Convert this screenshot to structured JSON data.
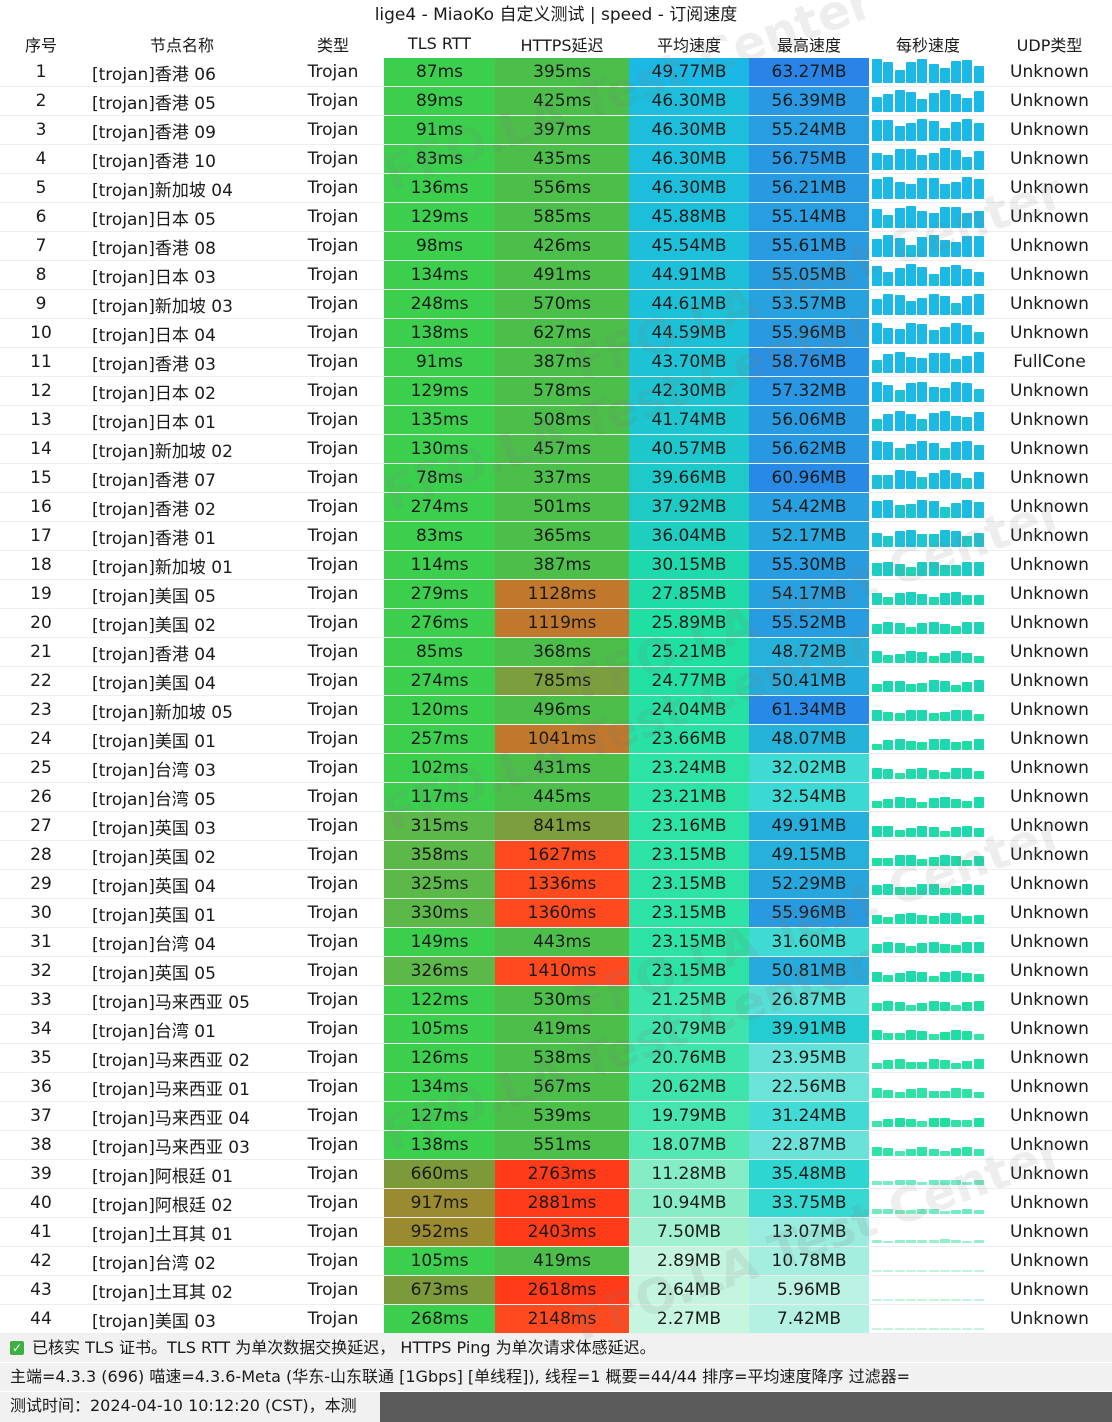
{
  "title": "lige4 - MiaoKo 自定义测试 | speed - 订阅速度",
  "columns": [
    "序号",
    "节点名称",
    "类型",
    "TLS RTT",
    "HTTPS延迟",
    "平均速度",
    "最高速度",
    "每秒速度",
    "UDP类型"
  ],
  "rows": [
    {
      "idx": "1",
      "name": "[trojan]香港 06",
      "type": "Trojan",
      "tls": "87ms",
      "https": "395ms",
      "avg": "49.77MB",
      "max": "63.27MB",
      "udp": "Unknown"
    },
    {
      "idx": "2",
      "name": "[trojan]香港 05",
      "type": "Trojan",
      "tls": "89ms",
      "https": "425ms",
      "avg": "46.30MB",
      "max": "56.39MB",
      "udp": "Unknown"
    },
    {
      "idx": "3",
      "name": "[trojan]香港 09",
      "type": "Trojan",
      "tls": "91ms",
      "https": "397ms",
      "avg": "46.30MB",
      "max": "55.24MB",
      "udp": "Unknown"
    },
    {
      "idx": "4",
      "name": "[trojan]香港 10",
      "type": "Trojan",
      "tls": "83ms",
      "https": "435ms",
      "avg": "46.30MB",
      "max": "56.75MB",
      "udp": "Unknown"
    },
    {
      "idx": "5",
      "name": "[trojan]新加坡 04",
      "type": "Trojan",
      "tls": "136ms",
      "https": "556ms",
      "avg": "46.30MB",
      "max": "56.21MB",
      "udp": "Unknown"
    },
    {
      "idx": "6",
      "name": "[trojan]日本 05",
      "type": "Trojan",
      "tls": "129ms",
      "https": "585ms",
      "avg": "45.88MB",
      "max": "55.14MB",
      "udp": "Unknown"
    },
    {
      "idx": "7",
      "name": "[trojan]香港 08",
      "type": "Trojan",
      "tls": "98ms",
      "https": "426ms",
      "avg": "45.54MB",
      "max": "55.61MB",
      "udp": "Unknown"
    },
    {
      "idx": "8",
      "name": "[trojan]日本 03",
      "type": "Trojan",
      "tls": "134ms",
      "https": "491ms",
      "avg": "44.91MB",
      "max": "55.05MB",
      "udp": "Unknown"
    },
    {
      "idx": "9",
      "name": "[trojan]新加坡 03",
      "type": "Trojan",
      "tls": "248ms",
      "https": "570ms",
      "avg": "44.61MB",
      "max": "53.57MB",
      "udp": "Unknown"
    },
    {
      "idx": "10",
      "name": "[trojan]日本 04",
      "type": "Trojan",
      "tls": "138ms",
      "https": "627ms",
      "avg": "44.59MB",
      "max": "55.96MB",
      "udp": "Unknown"
    },
    {
      "idx": "11",
      "name": "[trojan]香港 03",
      "type": "Trojan",
      "tls": "91ms",
      "https": "387ms",
      "avg": "43.70MB",
      "max": "58.76MB",
      "udp": "FullCone"
    },
    {
      "idx": "12",
      "name": "[trojan]日本 02",
      "type": "Trojan",
      "tls": "129ms",
      "https": "578ms",
      "avg": "42.30MB",
      "max": "57.32MB",
      "udp": "Unknown"
    },
    {
      "idx": "13",
      "name": "[trojan]日本 01",
      "type": "Trojan",
      "tls": "135ms",
      "https": "508ms",
      "avg": "41.74MB",
      "max": "56.06MB",
      "udp": "Unknown"
    },
    {
      "idx": "14",
      "name": "[trojan]新加坡 02",
      "type": "Trojan",
      "tls": "130ms",
      "https": "457ms",
      "avg": "40.57MB",
      "max": "56.62MB",
      "udp": "Unknown"
    },
    {
      "idx": "15",
      "name": "[trojan]香港 07",
      "type": "Trojan",
      "tls": "78ms",
      "https": "337ms",
      "avg": "39.66MB",
      "max": "60.96MB",
      "udp": "Unknown"
    },
    {
      "idx": "16",
      "name": "[trojan]香港 02",
      "type": "Trojan",
      "tls": "274ms",
      "https": "501ms",
      "avg": "37.92MB",
      "max": "54.42MB",
      "udp": "Unknown"
    },
    {
      "idx": "17",
      "name": "[trojan]香港 01",
      "type": "Trojan",
      "tls": "83ms",
      "https": "365ms",
      "avg": "36.04MB",
      "max": "52.17MB",
      "udp": "Unknown"
    },
    {
      "idx": "18",
      "name": "[trojan]新加坡 01",
      "type": "Trojan",
      "tls": "114ms",
      "https": "387ms",
      "avg": "30.15MB",
      "max": "55.30MB",
      "udp": "Unknown"
    },
    {
      "idx": "19",
      "name": "[trojan]美国 05",
      "type": "Trojan",
      "tls": "279ms",
      "https": "1128ms",
      "avg": "27.85MB",
      "max": "54.17MB",
      "udp": "Unknown"
    },
    {
      "idx": "20",
      "name": "[trojan]美国 02",
      "type": "Trojan",
      "tls": "276ms",
      "https": "1119ms",
      "avg": "25.89MB",
      "max": "55.52MB",
      "udp": "Unknown"
    },
    {
      "idx": "21",
      "name": "[trojan]香港 04",
      "type": "Trojan",
      "tls": "85ms",
      "https": "368ms",
      "avg": "25.21MB",
      "max": "48.72MB",
      "udp": "Unknown"
    },
    {
      "idx": "22",
      "name": "[trojan]美国 04",
      "type": "Trojan",
      "tls": "274ms",
      "https": "785ms",
      "avg": "24.77MB",
      "max": "50.41MB",
      "udp": "Unknown"
    },
    {
      "idx": "23",
      "name": "[trojan]新加坡 05",
      "type": "Trojan",
      "tls": "120ms",
      "https": "496ms",
      "avg": "24.04MB",
      "max": "61.34MB",
      "udp": "Unknown"
    },
    {
      "idx": "24",
      "name": "[trojan]美国 01",
      "type": "Trojan",
      "tls": "257ms",
      "https": "1041ms",
      "avg": "23.66MB",
      "max": "48.07MB",
      "udp": "Unknown"
    },
    {
      "idx": "25",
      "name": "[trojan]台湾 03",
      "type": "Trojan",
      "tls": "102ms",
      "https": "431ms",
      "avg": "23.24MB",
      "max": "32.02MB",
      "udp": "Unknown"
    },
    {
      "idx": "26",
      "name": "[trojan]台湾 05",
      "type": "Trojan",
      "tls": "117ms",
      "https": "445ms",
      "avg": "23.21MB",
      "max": "32.54MB",
      "udp": "Unknown"
    },
    {
      "idx": "27",
      "name": "[trojan]英国 03",
      "type": "Trojan",
      "tls": "315ms",
      "https": "841ms",
      "avg": "23.16MB",
      "max": "49.91MB",
      "udp": "Unknown"
    },
    {
      "idx": "28",
      "name": "[trojan]英国 02",
      "type": "Trojan",
      "tls": "358ms",
      "https": "1627ms",
      "avg": "23.15MB",
      "max": "49.15MB",
      "udp": "Unknown"
    },
    {
      "idx": "29",
      "name": "[trojan]英国 04",
      "type": "Trojan",
      "tls": "325ms",
      "https": "1336ms",
      "avg": "23.15MB",
      "max": "52.29MB",
      "udp": "Unknown"
    },
    {
      "idx": "30",
      "name": "[trojan]英国 01",
      "type": "Trojan",
      "tls": "330ms",
      "https": "1360ms",
      "avg": "23.15MB",
      "max": "55.96MB",
      "udp": "Unknown"
    },
    {
      "idx": "31",
      "name": "[trojan]台湾 04",
      "type": "Trojan",
      "tls": "149ms",
      "https": "443ms",
      "avg": "23.15MB",
      "max": "31.60MB",
      "udp": "Unknown"
    },
    {
      "idx": "32",
      "name": "[trojan]英国 05",
      "type": "Trojan",
      "tls": "326ms",
      "https": "1410ms",
      "avg": "23.15MB",
      "max": "50.81MB",
      "udp": "Unknown"
    },
    {
      "idx": "33",
      "name": "[trojan]马来西亚 05",
      "type": "Trojan",
      "tls": "122ms",
      "https": "530ms",
      "avg": "21.25MB",
      "max": "26.87MB",
      "udp": "Unknown"
    },
    {
      "idx": "34",
      "name": "[trojan]台湾 01",
      "type": "Trojan",
      "tls": "105ms",
      "https": "419ms",
      "avg": "20.79MB",
      "max": "39.91MB",
      "udp": "Unknown"
    },
    {
      "idx": "35",
      "name": "[trojan]马来西亚 02",
      "type": "Trojan",
      "tls": "126ms",
      "https": "538ms",
      "avg": "20.76MB",
      "max": "23.95MB",
      "udp": "Unknown"
    },
    {
      "idx": "36",
      "name": "[trojan]马来西亚 01",
      "type": "Trojan",
      "tls": "134ms",
      "https": "567ms",
      "avg": "20.62MB",
      "max": "22.56MB",
      "udp": "Unknown"
    },
    {
      "idx": "37",
      "name": "[trojan]马来西亚 04",
      "type": "Trojan",
      "tls": "127ms",
      "https": "539ms",
      "avg": "19.79MB",
      "max": "31.24MB",
      "udp": "Unknown"
    },
    {
      "idx": "38",
      "name": "[trojan]马来西亚 03",
      "type": "Trojan",
      "tls": "138ms",
      "https": "551ms",
      "avg": "18.07MB",
      "max": "22.87MB",
      "udp": "Unknown"
    },
    {
      "idx": "39",
      "name": "[trojan]阿根廷 01",
      "type": "Trojan",
      "tls": "660ms",
      "https": "2763ms",
      "avg": "11.28MB",
      "max": "35.48MB",
      "udp": "Unknown"
    },
    {
      "idx": "40",
      "name": "[trojan]阿根廷 02",
      "type": "Trojan",
      "tls": "917ms",
      "https": "2881ms",
      "avg": "10.94MB",
      "max": "33.75MB",
      "udp": "Unknown"
    },
    {
      "idx": "41",
      "name": "[trojan]土耳其 01",
      "type": "Trojan",
      "tls": "952ms",
      "https": "2403ms",
      "avg": "7.50MB",
      "max": "13.07MB",
      "udp": "Unknown"
    },
    {
      "idx": "42",
      "name": "[trojan]台湾 02",
      "type": "Trojan",
      "tls": "105ms",
      "https": "419ms",
      "avg": "2.89MB",
      "max": "10.78MB",
      "udp": "Unknown"
    },
    {
      "idx": "43",
      "name": "[trojan]土耳其 02",
      "type": "Trojan",
      "tls": "673ms",
      "https": "2618ms",
      "avg": "2.64MB",
      "max": "5.96MB",
      "udp": "Unknown"
    },
    {
      "idx": "44",
      "name": "[trojan]美国 03",
      "type": "Trojan",
      "tls": "268ms",
      "https": "2148ms",
      "avg": "2.27MB",
      "max": "7.42MB",
      "udp": "Unknown"
    }
  ],
  "footer": {
    "tls_note": "已核实 TLS 证书。TLS RTT 为单次数据交换延迟， HTTPS Ping 为单次请求体感延迟。",
    "info": "主端=4.3.3 (696) 喵速=4.3.6-Meta (华东-山东联通 [1Gbps] [单线程]), 线程=1 概要=44/44 排序=平均速度降序 过滤器=",
    "time": "测试时间：2024-04-10 10:12:20 (CST)，本测"
  },
  "watermark": "FFO.LA Test Center",
  "colors": {
    "tls_green": "#3ccf4e",
    "https_green": "#3cc04a",
    "https_orange": "#c0782c",
    "https_red": "#ff3b1a",
    "speed_high": "#1fb5e8",
    "speed_low": "#c9f7e0",
    "max_high": "#2a8fe6"
  }
}
